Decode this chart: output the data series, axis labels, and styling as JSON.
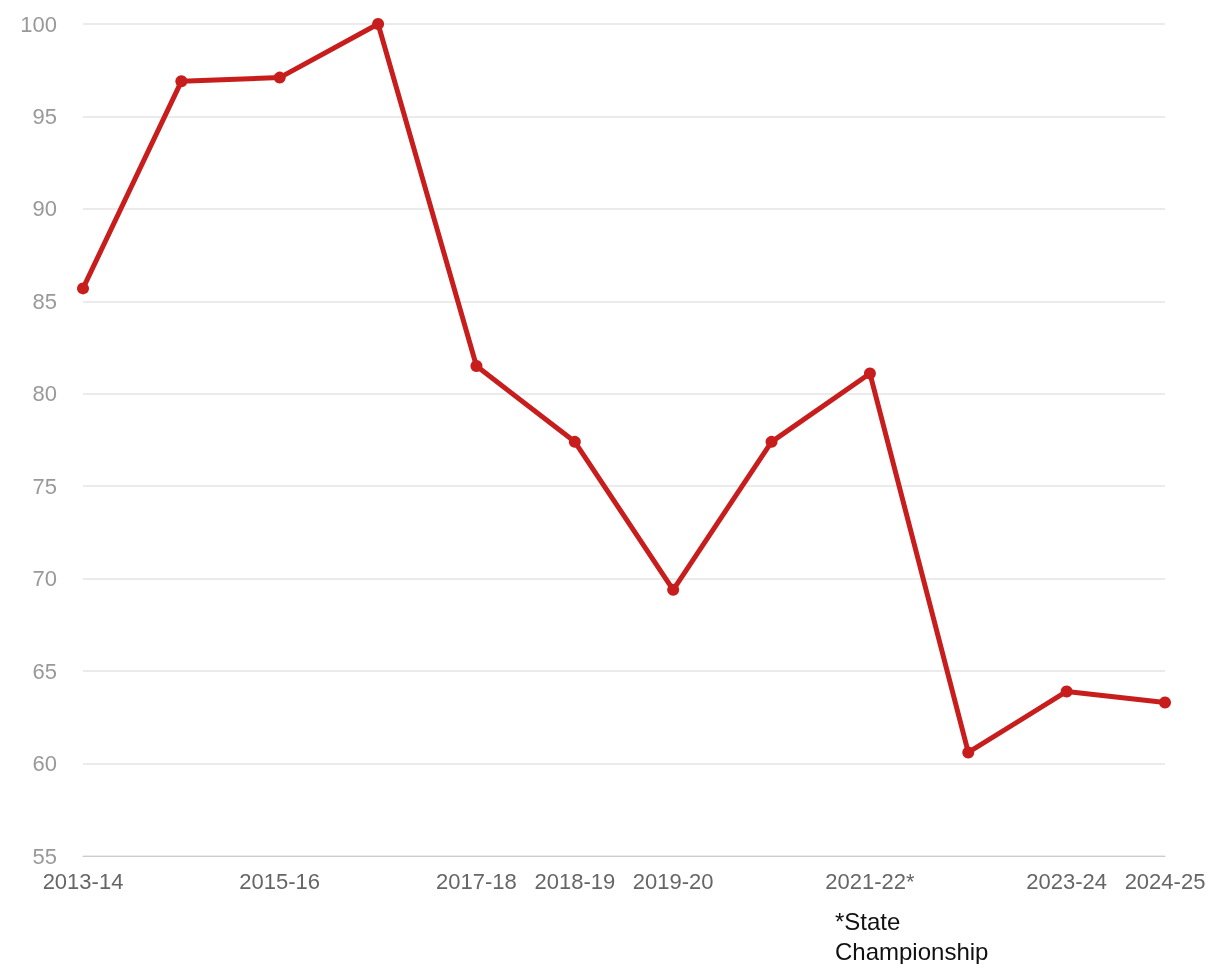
{
  "chart_data": {
    "type": "line",
    "categories": [
      "2013-14",
      null,
      "2015-16",
      null,
      "2017-18",
      "2018-19",
      "2019-20",
      null,
      "2021-22*",
      null,
      "2023-24",
      "2024-25"
    ],
    "series": [
      {
        "color": "#c71e1d",
        "values": [
          85.7,
          96.9,
          97.1,
          100,
          81.5,
          77.4,
          69.4,
          77.4,
          81.1,
          60.6,
          63.9,
          63.3
        ]
      }
    ],
    "ylim": [
      55,
      100
    ],
    "yticks": [
      55,
      60,
      65,
      70,
      75,
      80,
      85,
      90,
      95,
      100
    ],
    "grid": "y",
    "marker": "circle",
    "line_style": "solid",
    "annotations": [
      "*State Championship"
    ]
  }
}
